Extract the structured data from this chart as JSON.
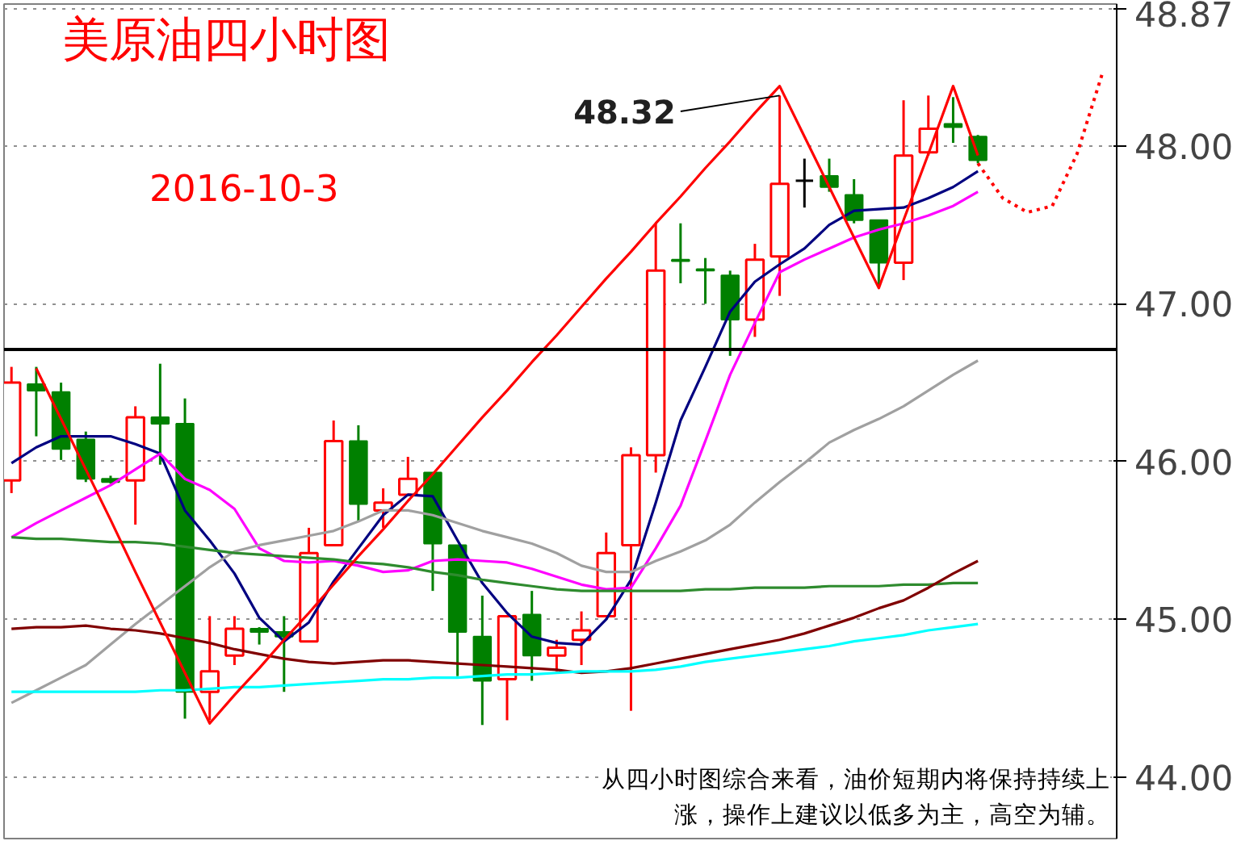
{
  "chart_data": {
    "type": "candlestick",
    "title": "美原油四小时图",
    "subtitle": "2016-10-3",
    "categories": [
      null,
      null,
      null,
      null,
      null,
      null,
      null,
      null,
      null,
      null,
      null,
      null,
      null,
      null,
      null,
      null,
      null,
      null,
      null,
      null,
      null,
      null,
      null,
      null,
      null,
      null,
      null,
      null,
      null,
      null,
      null,
      null,
      null,
      null,
      null,
      null,
      null,
      null,
      null,
      null,
      null,
      null,
      null,
      null,
      null
    ],
    "ohlc": [
      [
        45.88,
        46.6,
        45.8,
        46.5
      ],
      [
        46.49,
        46.6,
        46.16,
        46.45
      ],
      [
        46.44,
        46.5,
        46.01,
        46.08
      ],
      [
        46.14,
        46.19,
        45.87,
        45.89
      ],
      [
        45.89,
        45.91,
        45.86,
        45.87
      ],
      [
        45.88,
        46.35,
        45.6,
        46.28
      ],
      [
        46.28,
        46.62,
        45.98,
        46.24
      ],
      [
        46.24,
        46.4,
        44.37,
        44.54
      ],
      [
        44.54,
        45.02,
        44.36,
        44.67
      ],
      [
        44.77,
        45.02,
        44.71,
        44.94
      ],
      [
        44.94,
        44.95,
        44.84,
        44.92
      ],
      [
        44.92,
        45.02,
        44.54,
        44.89
      ],
      [
        44.86,
        45.58,
        44.86,
        45.42
      ],
      [
        45.47,
        46.26,
        45.47,
        46.13
      ],
      [
        46.13,
        46.23,
        45.62,
        45.73
      ],
      [
        45.69,
        45.83,
        45.58,
        45.74
      ],
      [
        45.79,
        46.03,
        45.79,
        45.89
      ],
      [
        45.93,
        45.93,
        45.18,
        45.48
      ],
      [
        45.47,
        45.47,
        44.64,
        44.92
      ],
      [
        44.89,
        45.15,
        44.33,
        44.61
      ],
      [
        44.62,
        45.02,
        44.36,
        45.02
      ],
      [
        45.03,
        45.18,
        44.61,
        44.77
      ],
      [
        44.77,
        44.87,
        44.67,
        44.82
      ],
      [
        44.87,
        45.05,
        44.71,
        44.93
      ],
      [
        45.02,
        45.55,
        45.02,
        45.42
      ],
      [
        45.47,
        46.09,
        44.42,
        46.04
      ],
      [
        46.04,
        47.51,
        45.93,
        47.21
      ],
      [
        47.28,
        47.51,
        47.13,
        47.27
      ],
      [
        47.22,
        47.29,
        47.0,
        47.21
      ],
      [
        47.18,
        47.21,
        46.67,
        46.9
      ],
      [
        46.9,
        47.38,
        46.79,
        47.28
      ],
      [
        47.3,
        48.32,
        47.05,
        47.76
      ],
      [
        47.78,
        47.92,
        47.61,
        47.78
      ],
      [
        47.81,
        47.92,
        47.71,
        47.74
      ],
      [
        47.69,
        47.79,
        47.51,
        47.53
      ],
      [
        47.53,
        47.53,
        47.11,
        47.26
      ],
      [
        47.26,
        48.29,
        47.15,
        47.94
      ],
      [
        47.96,
        48.32,
        47.94,
        48.11
      ],
      [
        48.14,
        48.31,
        48.02,
        48.12
      ],
      [
        48.06,
        48.07,
        47.89,
        47.91
      ],
      null,
      null,
      null,
      null,
      null
    ],
    "colors": [
      "#ff0000",
      "#008000",
      "#008000",
      "#008000",
      "#008000",
      "#ff0000",
      "#008000",
      "#008000",
      "#ff0000",
      "#ff0000",
      "#008000",
      "#008000",
      "#ff0000",
      "#ff0000",
      "#008000",
      "#ff0000",
      "#ff0000",
      "#008000",
      "#008000",
      "#008000",
      "#ff0000",
      "#008000",
      "#ff0000",
      "#ff0000",
      "#ff0000",
      "#ff0000",
      "#ff0000",
      "#008000",
      "#008000",
      "#008000",
      "#ff0000",
      "#ff0000",
      "#000000",
      "#008000",
      "#008000",
      "#008000",
      "#ff0000",
      "#ff0000",
      "#008000",
      "#008000",
      null,
      null,
      null,
      null,
      null
    ],
    "series": [
      {
        "type": "line",
        "color": "#000080",
        "values": [
          45.99,
          46.09,
          46.16,
          46.16,
          46.16,
          46.11,
          46.05,
          45.69,
          45.5,
          45.29,
          45.01,
          44.86,
          44.98,
          45.24,
          45.45,
          45.66,
          45.79,
          45.78,
          45.5,
          45.23,
          45.04,
          44.89,
          44.85,
          44.84,
          45.0,
          45.25,
          45.74,
          46.26,
          46.6,
          46.95,
          47.14,
          47.25,
          47.35,
          47.5,
          47.59,
          47.6,
          47.61,
          47.67,
          47.74,
          47.84,
          null,
          null,
          null,
          null,
          null
        ]
      },
      {
        "type": "line",
        "color": "#ff00ff",
        "values": [
          45.52,
          45.61,
          45.69,
          45.77,
          45.85,
          45.95,
          46.05,
          45.89,
          45.82,
          45.7,
          45.45,
          45.37,
          45.36,
          45.37,
          45.34,
          45.3,
          45.31,
          45.37,
          45.38,
          45.37,
          45.36,
          45.32,
          45.27,
          45.22,
          45.19,
          45.2,
          45.45,
          45.72,
          46.13,
          46.55,
          46.88,
          47.2,
          47.28,
          47.35,
          47.42,
          47.47,
          47.51,
          47.56,
          47.62,
          47.71,
          null,
          null,
          null,
          null,
          null
        ]
      },
      {
        "type": "line",
        "color": "#a0a0a0",
        "values": [
          44.47,
          44.55,
          44.63,
          44.71,
          44.84,
          44.97,
          45.09,
          45.21,
          45.33,
          45.43,
          45.47,
          45.5,
          45.53,
          45.56,
          45.62,
          45.69,
          45.69,
          45.66,
          45.61,
          45.56,
          45.52,
          45.48,
          45.42,
          45.34,
          45.3,
          45.3,
          45.37,
          45.43,
          45.5,
          45.6,
          45.74,
          45.87,
          45.99,
          46.12,
          46.2,
          46.27,
          46.35,
          46.45,
          46.55,
          46.64,
          null,
          null,
          null,
          null,
          null
        ]
      },
      {
        "type": "line",
        "color": "#2e8b2e",
        "values": [
          45.52,
          45.51,
          45.51,
          45.5,
          45.49,
          45.49,
          45.48,
          45.46,
          45.44,
          45.42,
          45.41,
          45.4,
          45.39,
          45.38,
          45.36,
          45.35,
          45.33,
          45.3,
          45.28,
          45.25,
          45.23,
          45.21,
          45.19,
          45.18,
          45.18,
          45.18,
          45.18,
          45.18,
          45.19,
          45.19,
          45.2,
          45.2,
          45.2,
          45.21,
          45.21,
          45.21,
          45.22,
          45.22,
          45.23,
          45.23,
          null,
          null,
          null,
          null,
          null
        ]
      },
      {
        "type": "line",
        "color": "#800000",
        "values": [
          44.94,
          44.95,
          44.95,
          44.96,
          44.94,
          44.93,
          44.91,
          44.88,
          44.85,
          44.81,
          44.78,
          44.75,
          44.73,
          44.72,
          44.73,
          44.74,
          44.74,
          44.73,
          44.72,
          44.71,
          44.7,
          44.69,
          44.68,
          44.66,
          44.67,
          44.69,
          44.72,
          44.75,
          44.78,
          44.81,
          44.84,
          44.87,
          44.91,
          44.96,
          45.01,
          45.07,
          45.12,
          45.2,
          45.29,
          45.37,
          null,
          null,
          null,
          null,
          null
        ]
      },
      {
        "type": "line",
        "color": "#00ffff",
        "values": [
          44.54,
          44.54,
          44.54,
          44.54,
          44.54,
          44.54,
          44.55,
          44.55,
          44.56,
          44.57,
          44.57,
          44.58,
          44.59,
          44.6,
          44.61,
          44.62,
          44.62,
          44.63,
          44.63,
          44.64,
          44.65,
          44.65,
          44.66,
          44.67,
          44.67,
          44.67,
          44.68,
          44.7,
          44.73,
          44.75,
          44.77,
          44.79,
          44.81,
          44.83,
          44.86,
          44.88,
          44.9,
          44.93,
          44.95,
          44.97,
          null,
          null,
          null,
          null,
          null
        ]
      },
      {
        "type": "line",
        "color": "#ff0000",
        "values": [
          null,
          46.59,
          46.27,
          45.95,
          45.63,
          45.3,
          44.98,
          44.66,
          44.34,
          44.52,
          44.69,
          44.87,
          45.04,
          45.22,
          45.4,
          45.57,
          45.75,
          45.92,
          46.1,
          46.28,
          46.45,
          46.63,
          46.8,
          46.98,
          47.16,
          47.33,
          47.51,
          47.68,
          47.86,
          48.03,
          48.21,
          48.38,
          48.06,
          47.74,
          47.42,
          47.1,
          47.53,
          47.95,
          48.38,
          47.94,
          null,
          null,
          null,
          null,
          null
        ]
      },
      {
        "type": "line",
        "color": "#ff0000",
        "line_style": "dotted",
        "values": [
          null,
          null,
          null,
          null,
          null,
          null,
          null,
          null,
          null,
          null,
          null,
          null,
          null,
          null,
          null,
          null,
          null,
          null,
          null,
          null,
          null,
          null,
          null,
          null,
          null,
          null,
          null,
          null,
          null,
          null,
          null,
          null,
          null,
          null,
          null,
          null,
          null,
          null,
          null,
          47.89,
          47.67,
          47.58,
          47.62,
          47.95,
          48.45
        ]
      }
    ],
    "ylim": [
      43.61,
      48.9
    ],
    "yticks": [
      {
        "value": 44,
        "label": "44.00"
      },
      {
        "value": 45,
        "label": "45.00"
      },
      {
        "value": 46,
        "label": "46.00"
      },
      {
        "value": 47,
        "label": "47.00"
      },
      {
        "value": 48,
        "label": "48.00"
      },
      {
        "value": 48.87,
        "label": "48.87"
      }
    ],
    "tick_labels": "y",
    "grid": "y",
    "ref_lines": [
      {
        "axis": "y",
        "value": 46.71,
        "color": "#000000"
      }
    ],
    "annotations": [
      "48.32",
      "从四小时图综合来看，油价短期内将保持持续上涨，操作上建议以低多为主，高空为辅。"
    ]
  }
}
